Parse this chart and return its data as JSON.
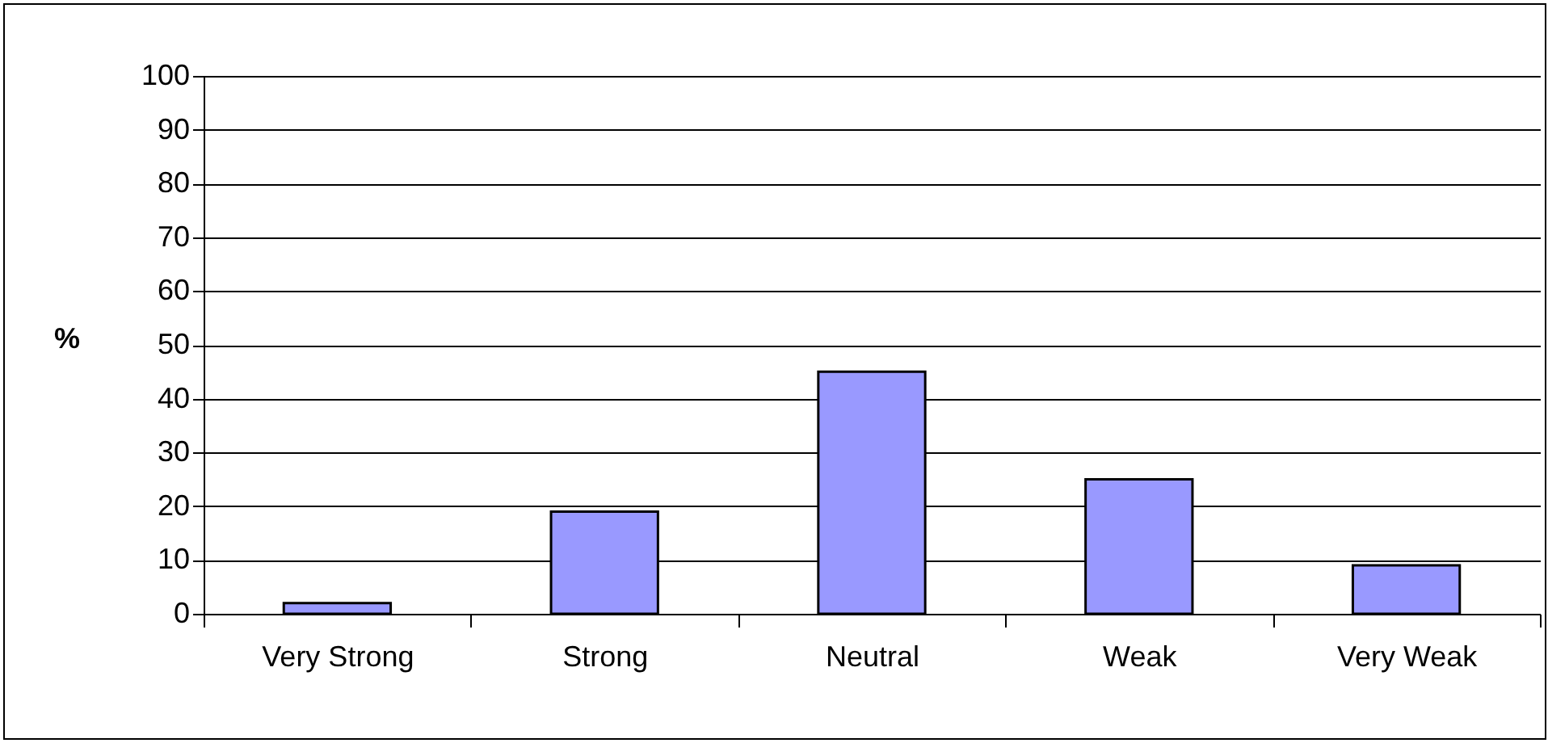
{
  "chart_data": {
    "type": "bar",
    "ylabel": "%",
    "categories": [
      "Very Strong",
      "Strong",
      "Neutral",
      "Weak",
      "Very Weak"
    ],
    "values": [
      2,
      19,
      45,
      25,
      9
    ],
    "color": "#9999ff",
    "ylim": [
      0,
      100
    ],
    "yticks": [
      0,
      10,
      20,
      30,
      40,
      50,
      60,
      70,
      80,
      90,
      100
    ],
    "grid": "y"
  }
}
